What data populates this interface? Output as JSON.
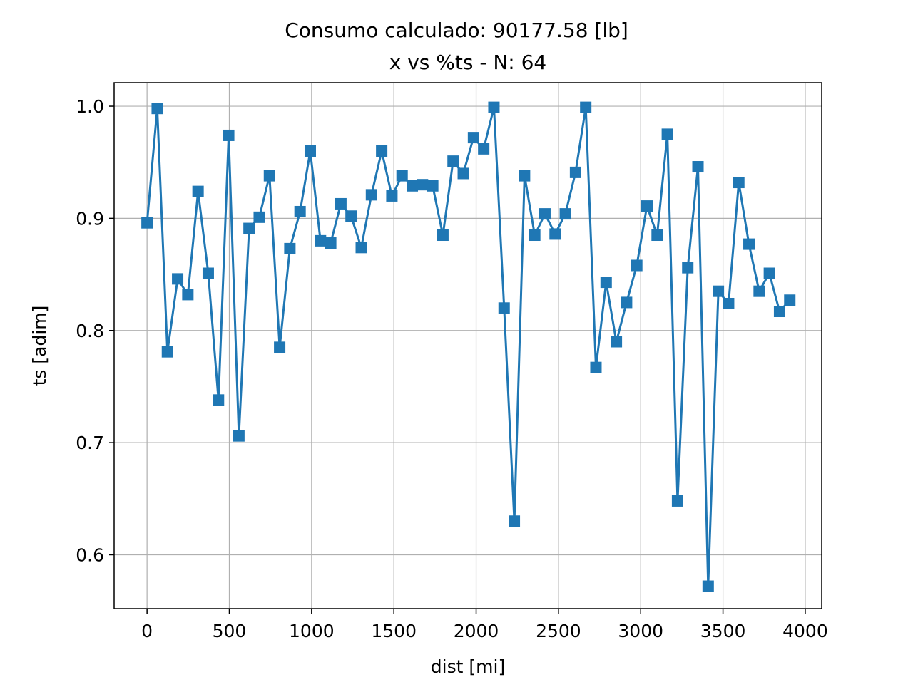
{
  "chart_data": {
    "type": "line",
    "title": "Consumo calculado: 90177.58 [lb]",
    "subtitle": "x vs %ts - N: 64",
    "xlabel": "dist [mi]",
    "ylabel": "ts [adim]",
    "xlim": [
      -200,
      4100
    ],
    "ylim": [
      0.552,
      1.021
    ],
    "x_ticks": [
      0,
      500,
      1000,
      1500,
      2000,
      2500,
      3000,
      3500,
      4000
    ],
    "x_tick_labels": [
      "0",
      "500",
      "1000",
      "1500",
      "2000",
      "2500",
      "3000",
      "3500",
      "4000"
    ],
    "y_ticks": [
      0.6,
      0.7,
      0.8,
      0.9,
      1.0
    ],
    "y_tick_labels": [
      "0.6",
      "0.7",
      "0.8",
      "0.9",
      "1.0"
    ],
    "grid": true,
    "marker": "square",
    "series_color": "#1f77b4",
    "x": [
      0,
      62,
      124,
      186,
      248,
      310,
      372,
      434,
      496,
      558,
      620,
      682,
      744,
      806,
      868,
      930,
      992,
      1054,
      1116,
      1178,
      1240,
      1302,
      1364,
      1426,
      1488,
      1550,
      1612,
      1674,
      1736,
      1798,
      1860,
      1922,
      1984,
      2046,
      2108,
      2170,
      2232,
      2294,
      2356,
      2418,
      2480,
      2542,
      2604,
      2666,
      2728,
      2790,
      2852,
      2914,
      2976,
      3038,
      3100,
      3162,
      3224,
      3286,
      3348,
      3410,
      3472,
      3534,
      3596,
      3658,
      3720,
      3782,
      3844,
      3906
    ],
    "values": [
      0.896,
      0.998,
      0.781,
      0.846,
      0.832,
      0.924,
      0.851,
      0.738,
      0.974,
      0.706,
      0.891,
      0.901,
      0.938,
      0.785,
      0.873,
      0.906,
      0.96,
      0.88,
      0.878,
      0.913,
      0.902,
      0.874,
      0.921,
      0.96,
      0.92,
      0.938,
      0.929,
      0.93,
      0.929,
      0.885,
      0.951,
      0.94,
      0.972,
      0.962,
      0.999,
      0.82,
      0.63,
      0.938,
      0.885,
      0.904,
      0.886,
      0.904,
      0.941,
      0.999,
      0.767,
      0.843,
      0.79,
      0.825,
      0.858,
      0.911,
      0.885,
      0.975,
      0.648,
      0.856,
      0.946,
      0.572,
      0.835,
      0.824,
      0.932,
      0.877,
      0.835,
      0.851,
      0.817,
      0.827
    ]
  }
}
